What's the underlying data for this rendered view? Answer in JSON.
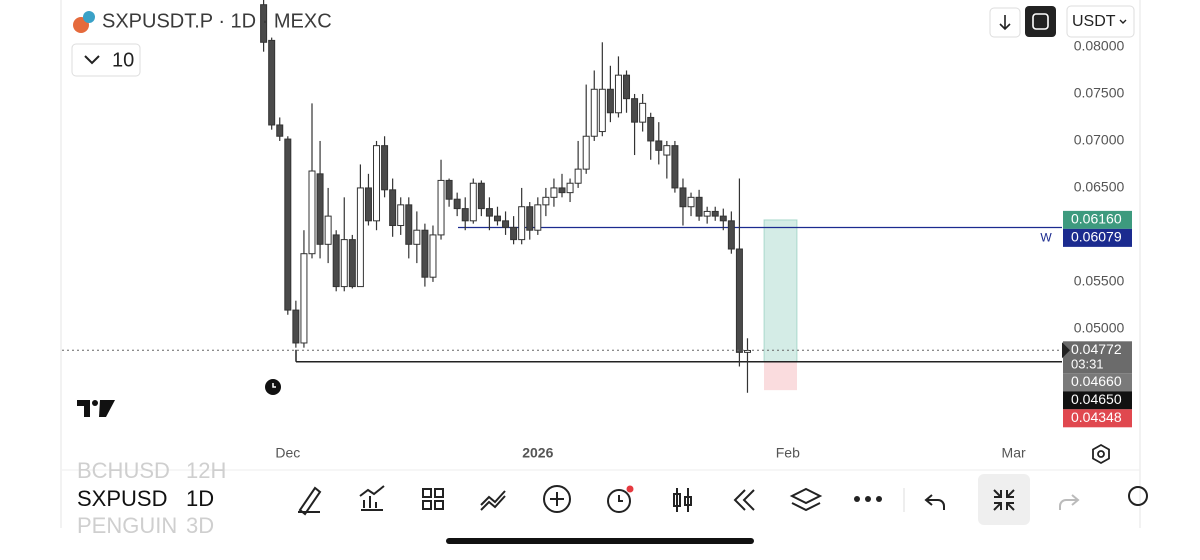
{
  "header": {
    "symbol": "SXPUSDT.P · 1D · MEXC",
    "interval_count": "10",
    "currency": "USDT"
  },
  "chart_data": {
    "type": "candlestick",
    "categories": [
      null,
      null,
      null,
      null,
      null,
      null,
      null,
      null,
      null,
      null,
      null,
      null,
      null,
      null,
      null,
      null,
      null,
      null,
      null,
      null,
      null,
      null,
      null,
      null,
      null,
      null,
      null,
      null,
      null,
      null,
      null,
      null,
      null,
      null,
      null,
      null,
      null,
      null,
      null,
      null,
      null,
      null,
      null,
      null,
      null,
      null,
      null,
      null,
      null,
      null,
      null,
      null,
      null,
      null,
      null,
      null,
      null,
      null,
      null,
      null,
      null
    ],
    "open": [
      0.0845,
      0.0807,
      0.0717,
      0.0702,
      0.052,
      0.0485,
      0.058,
      0.0665,
      0.059,
      0.06,
      0.0545,
      0.0595,
      0.0545,
      0.065,
      0.0615,
      0.0695,
      0.0648,
      0.061,
      0.0632,
      0.059,
      0.0605,
      0.0555,
      0.06,
      0.0658,
      0.0638,
      0.0628,
      0.0615,
      0.0655,
      0.0628,
      0.062,
      0.0615,
      0.0608,
      0.0595,
      0.063,
      0.0605,
      0.0632,
      0.064,
      0.065,
      0.0645,
      0.0655,
      0.067,
      0.0705,
      0.071,
      0.0755,
      0.073,
      0.077,
      0.0745,
      0.072,
      0.0725,
      0.07,
      0.0685,
      0.0695,
      0.065,
      0.063,
      0.064,
      0.062,
      0.0625,
      0.062,
      0.0615,
      0.0585,
      0.0475
    ],
    "high": [
      0.086,
      0.081,
      0.0725,
      0.0705,
      0.053,
      0.0605,
      0.074,
      0.07,
      0.065,
      0.0605,
      0.064,
      0.06,
      0.0675,
      0.0665,
      0.07,
      0.0705,
      0.066,
      0.064,
      0.064,
      0.0625,
      0.0612,
      0.061,
      0.068,
      0.066,
      0.0645,
      0.064,
      0.066,
      0.0658,
      0.064,
      0.063,
      0.0625,
      0.062,
      0.065,
      0.0635,
      0.064,
      0.065,
      0.066,
      0.0665,
      0.066,
      0.07,
      0.076,
      0.0775,
      0.0805,
      0.078,
      0.079,
      0.0775,
      0.075,
      0.075,
      0.073,
      0.072,
      0.07,
      0.07,
      0.066,
      0.0645,
      0.0648,
      0.063,
      0.063,
      0.0628,
      0.0625,
      0.066,
      0.049
    ],
    "low": [
      0.0795,
      0.0712,
      0.07,
      0.0515,
      0.048,
      0.048,
      0.0575,
      0.0575,
      0.057,
      0.054,
      0.054,
      0.0543,
      0.0545,
      0.061,
      0.0605,
      0.064,
      0.0598,
      0.06,
      0.0575,
      0.057,
      0.0545,
      0.055,
      0.0595,
      0.063,
      0.062,
      0.0605,
      0.0612,
      0.062,
      0.0605,
      0.061,
      0.06,
      0.059,
      0.059,
      0.0595,
      0.06,
      0.062,
      0.063,
      0.064,
      0.0635,
      0.065,
      0.0665,
      0.07,
      0.0705,
      0.072,
      0.0725,
      0.073,
      0.0685,
      0.071,
      0.068,
      0.0675,
      0.066,
      0.0645,
      0.061,
      0.062,
      0.0615,
      0.0612,
      0.0615,
      0.0605,
      0.058,
      0.046,
      0.0432
    ],
    "close": [
      0.0805,
      0.0717,
      0.0705,
      0.052,
      0.0485,
      0.058,
      0.0668,
      0.059,
      0.062,
      0.0545,
      0.0595,
      0.0545,
      0.065,
      0.0615,
      0.0695,
      0.0648,
      0.061,
      0.0632,
      0.059,
      0.0605,
      0.0555,
      0.06,
      0.0658,
      0.0638,
      0.0628,
      0.0615,
      0.0655,
      0.0628,
      0.062,
      0.0615,
      0.0608,
      0.0595,
      0.063,
      0.0605,
      0.0632,
      0.064,
      0.065,
      0.0645,
      0.0655,
      0.067,
      0.0705,
      0.0755,
      0.0755,
      0.073,
      0.077,
      0.0745,
      0.072,
      0.074,
      0.07,
      0.069,
      0.0695,
      0.065,
      0.063,
      0.064,
      0.062,
      0.0625,
      0.062,
      0.0615,
      0.0585,
      0.0475,
      0.0477
    ],
    "up_color": "#ffffff",
    "down_color": "#4a4a4a",
    "xlim": [
      -25,
      99
    ],
    "xticks": [
      {
        "value": 3,
        "label": "Dec"
      },
      {
        "value": 34,
        "label": "2026"
      },
      {
        "value": 65,
        "label": "Feb"
      },
      {
        "value": 93,
        "label": "Mar"
      }
    ],
    "ylim": [
      0.0386,
      0.085
    ],
    "yticks": [
      {
        "value": 0.05,
        "label": "0.05000"
      },
      {
        "value": 0.055,
        "label": "0.05500"
      },
      {
        "value": 0.06,
        "label": "0.06000"
      },
      {
        "value": 0.065,
        "label": "0.06500"
      },
      {
        "value": 0.07,
        "label": "0.07000"
      },
      {
        "value": 0.075,
        "label": "0.07500"
      },
      {
        "value": 0.08,
        "label": "0.08000"
      }
    ],
    "price_labels": [
      {
        "value": 0.0616,
        "label": "0.06160",
        "color": "#3d9a7e"
      },
      {
        "value": 0.06079,
        "label": "0.06079",
        "color": "#1b2b8f"
      },
      {
        "value": 0.04772,
        "label": "0.04772",
        "color": "#6b6b6b"
      },
      {
        "value": 0.0466,
        "label": "0.04660",
        "color": "#7a7a7a"
      },
      {
        "value": 0.0465,
        "label": "0.04650",
        "color": "#111111"
      },
      {
        "value": 0.04348,
        "label": "0.04348",
        "color": "#e0484f"
      }
    ],
    "countdown": "03:31",
    "level_line": {
      "value": 0.06079,
      "label": "W",
      "color": "#1b2b8f"
    },
    "support_line": {
      "value": 0.0465,
      "color": "#222222"
    },
    "position": {
      "entry": 0.0465,
      "target": 0.0616,
      "stop": 0.04348
    }
  },
  "watchlist": [
    {
      "symbol": "BCHUSD",
      "interval": "12H"
    },
    {
      "symbol": "SXPUSD",
      "interval": "1D"
    },
    {
      "symbol": "PENGUIN",
      "interval": "3D"
    }
  ]
}
